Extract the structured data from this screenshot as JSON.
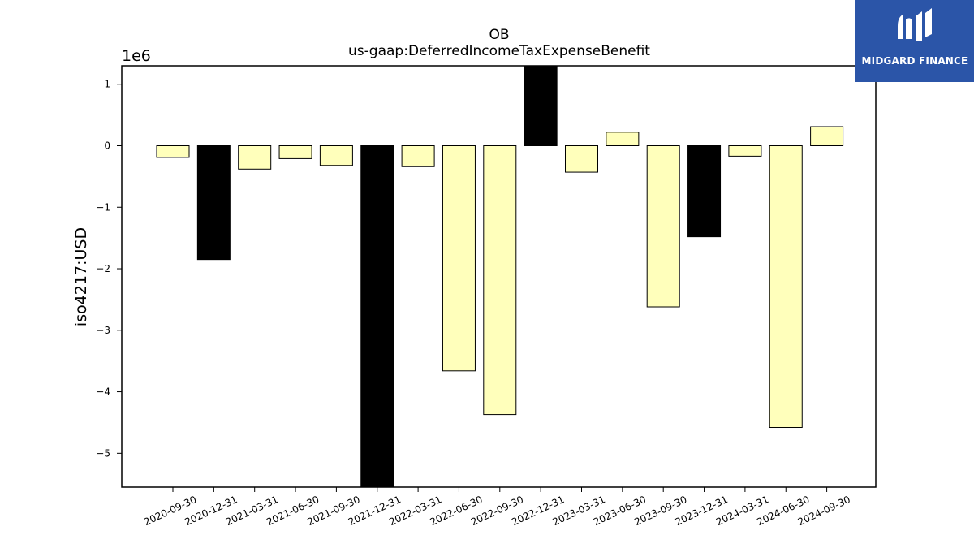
{
  "chart_data": {
    "type": "bar",
    "title": "OB",
    "subtitle": "us-gaap:DeferredIncomeTaxExpenseBenefit",
    "ylabel": "iso4217:USD",
    "xlabel": "",
    "offset_label": "1e6",
    "ylim": [
      -5.55,
      1.3
    ],
    "yticks": [
      1,
      0,
      -1,
      -2,
      -3,
      -4,
      -5
    ],
    "ytick_labels": [
      "1",
      "0",
      "−1",
      "−2",
      "−3",
      "−4",
      "−5"
    ],
    "categories": [
      "2020-09-30",
      "2020-12-31",
      "2021-03-31",
      "2021-06-30",
      "2021-09-30",
      "2021-12-31",
      "2022-03-31",
      "2022-06-30",
      "2022-09-30",
      "2022-12-31",
      "2023-03-31",
      "2023-06-30",
      "2023-09-30",
      "2023-12-31",
      "2024-03-31",
      "2024-06-30",
      "2024-09-30"
    ],
    "values": [
      -0.19,
      -1.85,
      -0.38,
      -0.21,
      -0.32,
      -5.6,
      -0.34,
      -3.66,
      -4.37,
      1.3,
      -0.43,
      0.22,
      -2.62,
      -1.48,
      -0.17,
      -4.58,
      0.31
    ],
    "bar_colors": [
      "#ffffbb",
      "#000000",
      "#ffffbb",
      "#ffffbb",
      "#ffffbb",
      "#000000",
      "#ffffbb",
      "#ffffbb",
      "#ffffbb",
      "#000000",
      "#ffffbb",
      "#ffffbb",
      "#ffffbb",
      "#000000",
      "#ffffbb",
      "#ffffbb",
      "#ffffbb"
    ],
    "edge_color": "#000000",
    "grid": false
  },
  "logo": {
    "text": "MIDGARD FINANCE",
    "background": "#2b55a8",
    "foreground": "#ffffff"
  }
}
